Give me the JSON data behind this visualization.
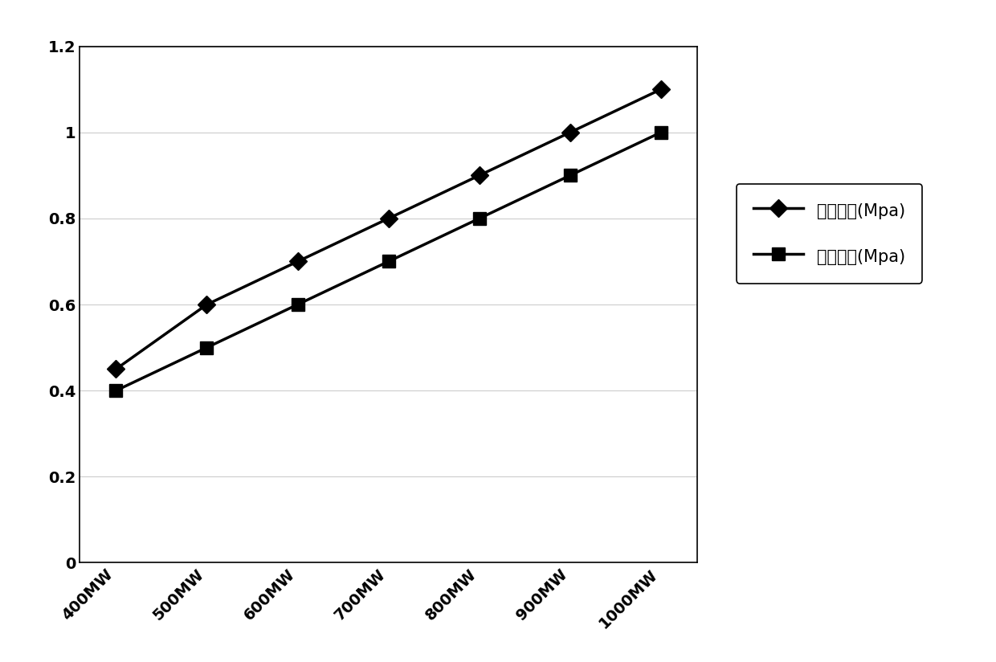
{
  "x_labels": [
    "400MW",
    "500MW",
    "600MW",
    "700MW",
    "800MW",
    "900MW",
    "1000MW"
  ],
  "series1_name": "实际压力(Mpa)",
  "series1_y": [
    0.45,
    0.6,
    0.7,
    0.8,
    0.9,
    1.0,
    1.1
  ],
  "series1_marker": "D",
  "series2_name": "控制压力(Mpa)",
  "series2_y": [
    0.4,
    0.5,
    0.6,
    0.7,
    0.8,
    0.9,
    1.0
  ],
  "series2_marker": "s",
  "line_color": "#000000",
  "ylim": [
    0,
    1.2
  ],
  "yticks": [
    0,
    0.2,
    0.4,
    0.6,
    0.8,
    1.0,
    1.2
  ],
  "background_color": "#ffffff",
  "legend_fontsize": 15,
  "tick_fontsize": 14,
  "linewidth": 2.5,
  "markersize": 11
}
